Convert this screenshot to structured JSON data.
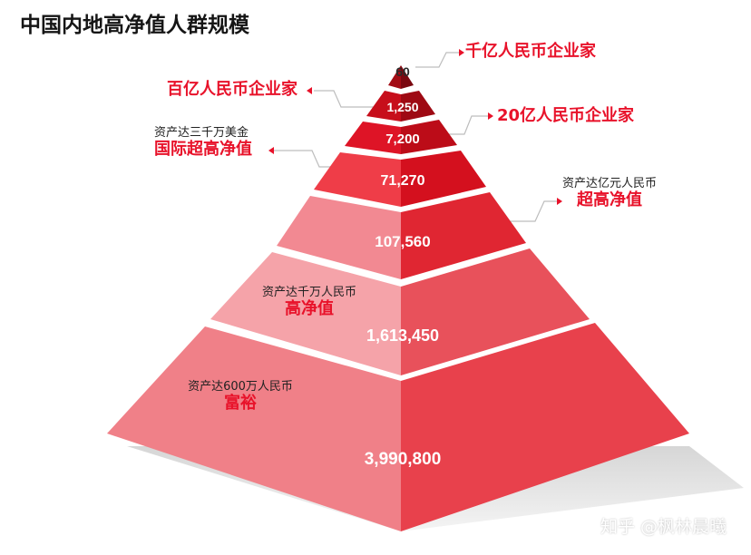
{
  "title": "中国内地高净值人群规模",
  "tiers": [
    {
      "value": "60"
    },
    {
      "value": "1,250"
    },
    {
      "value": "7,200"
    },
    {
      "value": "71,270"
    },
    {
      "value": "107,560"
    },
    {
      "value": "1,613,450"
    },
    {
      "value": "3,990,800"
    }
  ],
  "labels": {
    "qianyi": "千亿人民币企业家",
    "baiyi": "百亿人民币企业家",
    "ershiyi": "20亿人民币企业家",
    "intl_small": "资产达三千万美金",
    "intl_big": "国际超高净值",
    "super_small": "资产达亿元人民币",
    "super_big": "超高净值",
    "high_small": "资产达千万人民币",
    "high_big": "高净值",
    "rich_small": "资产达600万人民币",
    "rich_big": "富裕"
  },
  "watermark": "知乎 @枫林晨曦",
  "colors": {
    "accent": "#e8122a",
    "dark_red": "#8b0a12",
    "light_pink": "#f5a3a9",
    "shadow": "#e2e2e2"
  }
}
